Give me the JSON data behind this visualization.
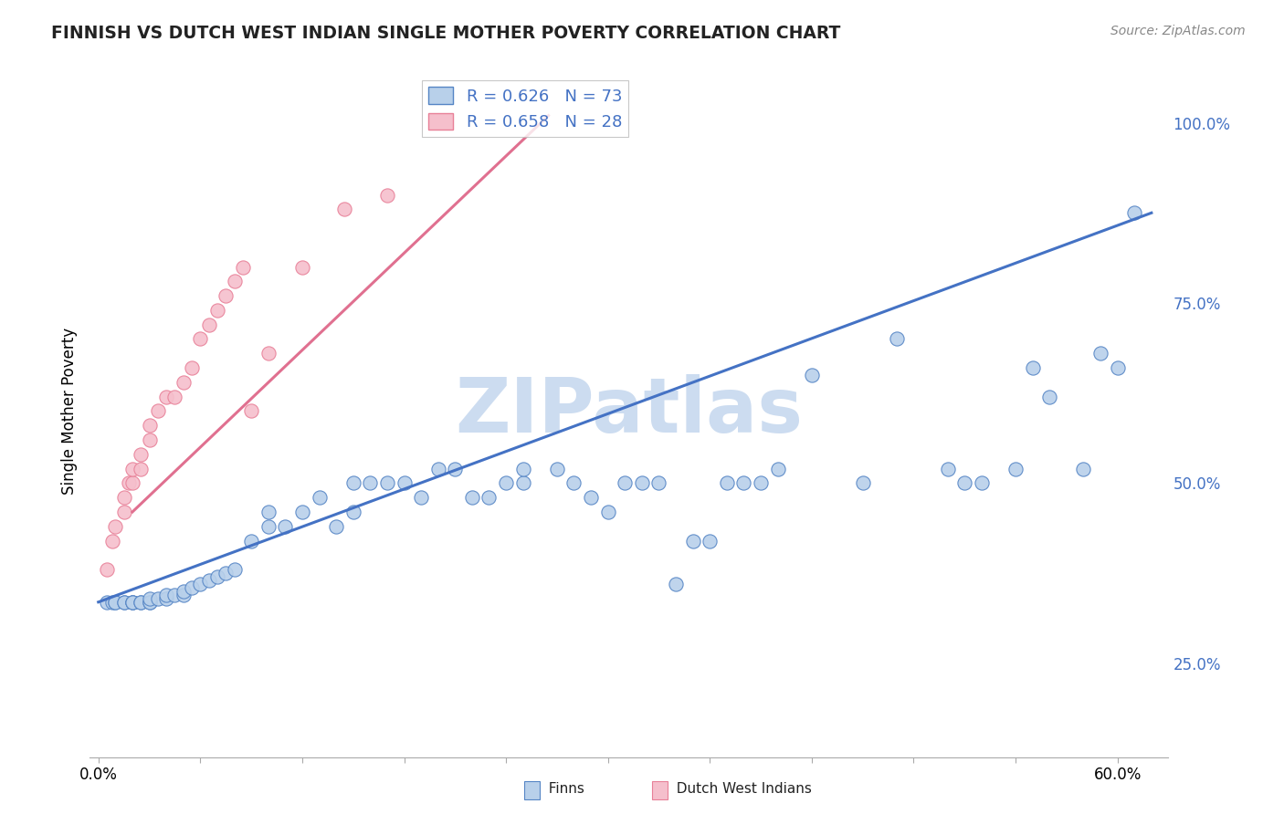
{
  "title": "FINNISH VS DUTCH WEST INDIAN SINGLE MOTHER POVERTY CORRELATION CHART",
  "source": "Source: ZipAtlas.com",
  "ylabel": "Single Mother Poverty",
  "xlim": [
    -0.005,
    0.63
  ],
  "ylim": [
    0.12,
    1.08
  ],
  "xticks": [
    0.0,
    0.06,
    0.12,
    0.18,
    0.24,
    0.3,
    0.36,
    0.42,
    0.48,
    0.54,
    0.6
  ],
  "xticklabels_show": [
    "0.0%",
    "60.0%"
  ],
  "yticks_right": [
    0.25,
    0.5,
    0.75,
    1.0
  ],
  "ytick_right_labels": [
    "25.0%",
    "50.0%",
    "75.0%",
    "100.0%"
  ],
  "legend_r_finn": "R = 0.626",
  "legend_n_finn": "N = 73",
  "legend_r_dutch": "R = 0.658",
  "legend_n_dutch": "N = 28",
  "finn_color": "#b8d0ea",
  "dutch_color": "#f5bfcc",
  "finn_edge_color": "#5585c5",
  "dutch_edge_color": "#e88098",
  "finn_line_color": "#4472c4",
  "dutch_line_color": "#e07090",
  "watermark": "ZIPatlas",
  "watermark_color": "#ccdcf0",
  "finn_trend_x0": 0.0,
  "finn_trend_y0": 0.335,
  "finn_trend_x1": 0.62,
  "finn_trend_y1": 0.875,
  "dutch_trend_x0": 0.02,
  "dutch_trend_y0": 0.46,
  "dutch_trend_x1": 0.265,
  "dutch_trend_y1": 1.01,
  "finn_x": [
    0.005,
    0.008,
    0.01,
    0.01,
    0.015,
    0.015,
    0.02,
    0.02,
    0.02,
    0.025,
    0.025,
    0.03,
    0.03,
    0.03,
    0.035,
    0.04,
    0.04,
    0.045,
    0.05,
    0.05,
    0.055,
    0.06,
    0.065,
    0.07,
    0.075,
    0.08,
    0.09,
    0.1,
    0.1,
    0.11,
    0.12,
    0.13,
    0.14,
    0.15,
    0.15,
    0.16,
    0.17,
    0.18,
    0.19,
    0.2,
    0.21,
    0.22,
    0.23,
    0.24,
    0.25,
    0.25,
    0.27,
    0.28,
    0.29,
    0.3,
    0.31,
    0.32,
    0.33,
    0.34,
    0.35,
    0.36,
    0.37,
    0.38,
    0.39,
    0.4,
    0.42,
    0.45,
    0.47,
    0.5,
    0.51,
    0.52,
    0.54,
    0.55,
    0.56,
    0.58,
    0.59,
    0.6,
    0.61
  ],
  "finn_y": [
    0.335,
    0.335,
    0.335,
    0.335,
    0.335,
    0.335,
    0.335,
    0.335,
    0.335,
    0.335,
    0.335,
    0.335,
    0.335,
    0.34,
    0.34,
    0.34,
    0.345,
    0.345,
    0.345,
    0.35,
    0.355,
    0.36,
    0.365,
    0.37,
    0.375,
    0.38,
    0.42,
    0.44,
    0.46,
    0.44,
    0.46,
    0.48,
    0.44,
    0.46,
    0.5,
    0.5,
    0.5,
    0.5,
    0.48,
    0.52,
    0.52,
    0.48,
    0.48,
    0.5,
    0.5,
    0.52,
    0.52,
    0.5,
    0.48,
    0.46,
    0.5,
    0.5,
    0.5,
    0.36,
    0.42,
    0.42,
    0.5,
    0.5,
    0.5,
    0.52,
    0.65,
    0.5,
    0.7,
    0.52,
    0.5,
    0.5,
    0.52,
    0.66,
    0.62,
    0.52,
    0.68,
    0.66,
    0.875
  ],
  "dutch_x": [
    0.005,
    0.008,
    0.01,
    0.015,
    0.015,
    0.018,
    0.02,
    0.02,
    0.025,
    0.025,
    0.03,
    0.03,
    0.035,
    0.04,
    0.045,
    0.05,
    0.055,
    0.06,
    0.065,
    0.07,
    0.075,
    0.08,
    0.085,
    0.09,
    0.1,
    0.12,
    0.145,
    0.17
  ],
  "dutch_y": [
    0.38,
    0.42,
    0.44,
    0.46,
    0.48,
    0.5,
    0.5,
    0.52,
    0.52,
    0.54,
    0.56,
    0.58,
    0.6,
    0.62,
    0.62,
    0.64,
    0.66,
    0.7,
    0.72,
    0.74,
    0.76,
    0.78,
    0.8,
    0.6,
    0.68,
    0.8,
    0.88,
    0.9
  ]
}
